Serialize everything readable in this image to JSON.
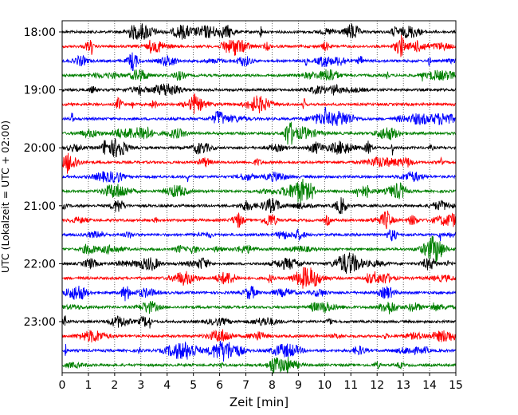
{
  "chart_data": {
    "type": "line",
    "title": "",
    "xlabel": "Zeit  [min]",
    "ylabel": "UTC (Lokalzeit = UTC + 02:00)",
    "xlim": [
      0,
      15
    ],
    "x_ticks": [
      "0",
      "1",
      "2",
      "3",
      "4",
      "5",
      "6",
      "7",
      "8",
      "9",
      "10",
      "11",
      "12",
      "13",
      "14",
      "15"
    ],
    "start_utc": "18:00",
    "trace_interval_minutes": 15,
    "y_ticks": [
      {
        "label": "18:00",
        "row": 0
      },
      {
        "label": "19:00",
        "row": 4
      },
      {
        "label": "20:00",
        "row": 8
      },
      {
        "label": "21:00",
        "row": 12
      },
      {
        "label": "22:00",
        "row": 16
      },
      {
        "label": "23:00",
        "row": 20
      }
    ],
    "grid": {
      "vertical": true,
      "style": "dotted"
    },
    "series_colors": [
      "#000000",
      "#ff0000",
      "#0000ff",
      "#008000"
    ],
    "trace_count": 24
  }
}
